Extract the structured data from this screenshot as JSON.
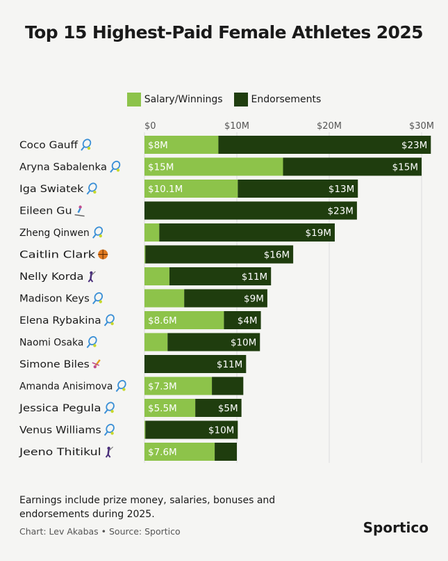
{
  "title": "Top 15 Highest-Paid Female Athletes 2025",
  "colors": {
    "salary": "#8dc34a",
    "endorsements": "#1f3d0e",
    "background": "#f5f5f3",
    "grid": "#dcdcdc"
  },
  "legend": {
    "salary_label": "Salary/Winnings",
    "endorsements_label": "Endorsements"
  },
  "chart_data": {
    "type": "bar",
    "orientation": "horizontal",
    "stacked": true,
    "xlim": [
      0,
      30.7
    ],
    "x_ticks": [
      0,
      10,
      20,
      30
    ],
    "x_tick_labels": [
      "$0",
      "$10M",
      "$20M",
      "$30M"
    ],
    "grid": true,
    "legend_position": "top-center",
    "categories": [
      "Coco Gauff",
      "Aryna Sabalenka",
      "Iga Swiatek",
      "Eileen Gu",
      "Zheng Qinwen",
      "Caitlin Clark",
      "Nelly Korda",
      "Madison Keys",
      "Elena Rybakina",
      "Naomi Osaka",
      "Simone Biles",
      "Amanda Anisimova",
      "Jessica Pegula",
      "Venus Williams",
      "Jeeno Thitikul"
    ],
    "sport_icons": [
      "tennis-icon",
      "tennis-icon",
      "tennis-icon",
      "skiing-icon",
      "tennis-icon",
      "basketball-icon",
      "golf-icon",
      "tennis-icon",
      "tennis-icon",
      "tennis-icon",
      "gymnastics-icon",
      "tennis-icon",
      "tennis-icon",
      "tennis-icon",
      "golf-icon"
    ],
    "series": [
      {
        "name": "Salary/Winnings",
        "values": [
          8,
          15,
          10.1,
          0,
          1.6,
          0.1,
          2.7,
          4.3,
          8.6,
          2.5,
          0,
          7.3,
          5.5,
          0.1,
          7.6
        ],
        "labels": [
          "$8M",
          "$15M",
          "$10.1M",
          "",
          "",
          "",
          "",
          "",
          "$8.6M",
          "",
          "",
          "$7.3M",
          "$5.5M",
          "",
          "$7.6M"
        ]
      },
      {
        "name": "Endorsements",
        "values": [
          23,
          15,
          13,
          23,
          19,
          16,
          11,
          9,
          4,
          10,
          11,
          3.4,
          5,
          10,
          2.4
        ],
        "labels": [
          "$23M",
          "$15M",
          "$13M",
          "$23M",
          "$19M",
          "$16M",
          "$11M",
          "$9M",
          "$4M",
          "$10M",
          "$11M",
          "",
          "$5M",
          "$10M",
          ""
        ]
      }
    ]
  },
  "note": "Earnings include prize money, salaries, bonuses and endorsements during 2025.",
  "credit": "Chart: Lev Akabas • Source: Sportico",
  "brand": "Sportico"
}
